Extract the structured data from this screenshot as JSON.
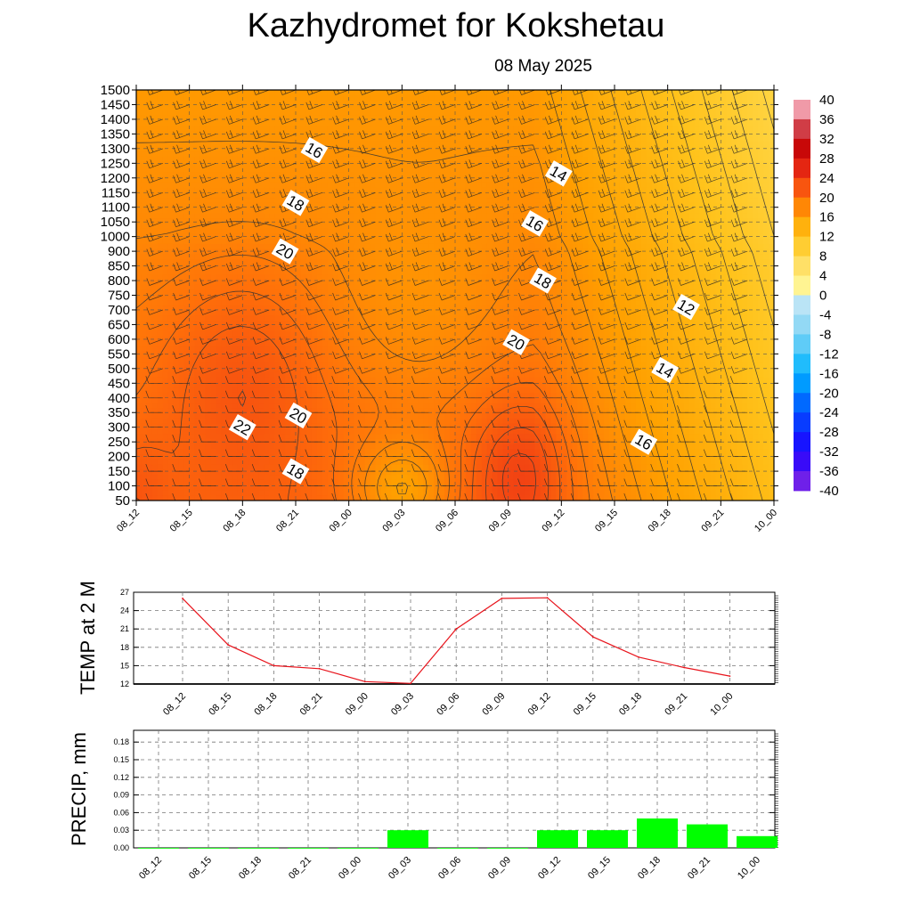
{
  "title": "Kazhydromet  for Kokshetau",
  "subtitle": "08 May 2025",
  "colors": {
    "temp_line": "#e8141c",
    "precip_bar": "#00ff00",
    "contour_line": "#333333"
  },
  "chart_data": [
    {
      "type": "heatmap",
      "name": "time-height temperature cross-section",
      "x": [
        "08_12",
        "08_15",
        "08_18",
        "08_21",
        "09_00",
        "09_03",
        "09_06",
        "09_09",
        "09_12",
        "09_15",
        "09_18",
        "09_21",
        "10_00"
      ],
      "y": [
        50,
        100,
        150,
        200,
        250,
        300,
        350,
        400,
        450,
        500,
        550,
        600,
        650,
        700,
        750,
        800,
        850,
        900,
        1000,
        1050,
        1100,
        1150,
        1200,
        1250,
        1300,
        1350,
        1400,
        1450,
        1500
      ],
      "ylim": [
        50,
        1500
      ],
      "colorbar": {
        "ticks": [
          40,
          36,
          32,
          28,
          24,
          20,
          16,
          12,
          8,
          4,
          0,
          -4,
          -8,
          -12,
          -16,
          -20,
          -24,
          -28,
          -32,
          -36,
          -40
        ],
        "range": [
          -40,
          40
        ],
        "stops": [
          {
            "v": -40,
            "c": "#8a2be2"
          },
          {
            "v": -32,
            "c": "#1e00ff"
          },
          {
            "v": -24,
            "c": "#0050ff"
          },
          {
            "v": -16,
            "c": "#00b4ff"
          },
          {
            "v": -8,
            "c": "#7fd4f4"
          },
          {
            "v": -0.1,
            "c": "#cde9f6"
          },
          {
            "v": 0,
            "c": "#ffffa0"
          },
          {
            "v": 4,
            "c": "#ffe884"
          },
          {
            "v": 8,
            "c": "#ffd84a"
          },
          {
            "v": 12,
            "c": "#ffc21a"
          },
          {
            "v": 16,
            "c": "#ffa000"
          },
          {
            "v": 20,
            "c": "#ff6e0a"
          },
          {
            "v": 24,
            "c": "#f03c14"
          },
          {
            "v": 28,
            "c": "#d80f0f"
          },
          {
            "v": 32,
            "c": "#b80000"
          },
          {
            "v": 36,
            "c": "#e87a8c"
          },
          {
            "v": 40,
            "c": "#f8bac4"
          }
        ]
      },
      "grid": true,
      "contour_labels": [
        {
          "text": "16",
          "t": 3.35,
          "h": 1295
        },
        {
          "text": "18",
          "t": 3.0,
          "h": 1115
        },
        {
          "text": "20",
          "t": 2.8,
          "h": 900
        },
        {
          "text": "14",
          "t": 7.95,
          "h": 1215
        },
        {
          "text": "16",
          "t": 7.5,
          "h": 1045
        },
        {
          "text": "18",
          "t": 7.65,
          "h": 800
        },
        {
          "text": "20",
          "t": 7.15,
          "h": 590
        },
        {
          "text": "12",
          "t": 10.35,
          "h": 710
        },
        {
          "text": "14",
          "t": 9.95,
          "h": 495
        },
        {
          "text": "16",
          "t": 9.55,
          "h": 250
        },
        {
          "text": "22",
          "t": 2.0,
          "h": 300
        },
        {
          "text": "20",
          "t": 3.05,
          "h": 340
        },
        {
          "text": "18",
          "t": 3.0,
          "h": 150
        }
      ]
    },
    {
      "type": "line",
      "ylabel": "TEMP at 2 M",
      "x": [
        "08_12",
        "08_15",
        "08_18",
        "08_21",
        "09_00",
        "09_03",
        "09_06",
        "09_09",
        "09_12",
        "09_15",
        "09_18",
        "09_21",
        "10_00"
      ],
      "values": [
        26.0,
        18.4,
        15.0,
        14.5,
        12.4,
        12.1,
        21.0,
        26.0,
        26.1,
        19.7,
        16.4,
        14.7,
        13.3
      ],
      "ylim": [
        12,
        27
      ],
      "yticks": [
        12,
        15,
        18,
        21,
        24,
        27
      ],
      "grid": true
    },
    {
      "type": "bar",
      "ylabel": "PRECIP, mm",
      "categories": [
        "08_12",
        "08_15",
        "08_18",
        "08_21",
        "09_00",
        "09_03",
        "09_06",
        "09_09",
        "09_12",
        "09_15",
        "09_18",
        "09_21",
        "10_00"
      ],
      "values": [
        0.0,
        0.0,
        0.0,
        0.0,
        0.0,
        0.03,
        0.0,
        0.0,
        0.03,
        0.03,
        0.05,
        0.04,
        0.02
      ],
      "ylim": [
        0,
        0.2
      ],
      "yticks": [
        "0.00",
        "0.03",
        "0.06",
        "0.09",
        "0.12",
        "0.15",
        "0.18"
      ],
      "grid": true
    }
  ]
}
